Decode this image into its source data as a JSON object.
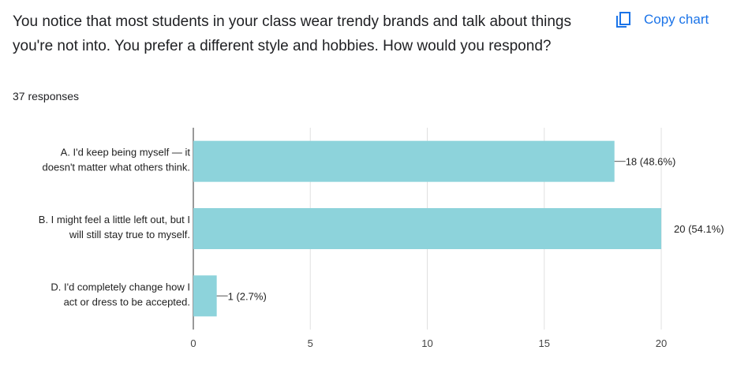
{
  "question": {
    "title": "You notice that most students in your class wear trendy brands and talk about things you're not into. You prefer a different style and hobbies. How would you respond?",
    "responses": "37 responses"
  },
  "copy_button": {
    "label": "Copy chart",
    "icon": "copy-icon"
  },
  "colors": {
    "bar": "#8dd3db",
    "accent": "#1a73e8",
    "grid": "#e0e0e0",
    "axis": "#333333"
  },
  "chart_data": {
    "type": "bar",
    "orientation": "horizontal",
    "categories": [
      [
        "A. I'd keep being myself — it",
        "doesn't matter what others think."
      ],
      [
        "B. I might feel a little left out, but I",
        "will still stay true to myself."
      ],
      [
        "D. I'd completely change how I",
        "act or dress to be accepted."
      ]
    ],
    "values": [
      18,
      20,
      1
    ],
    "data_labels": [
      "18 (48.6%)",
      "20 (54.1%)",
      "1 (2.7%)"
    ],
    "xlim": [
      0,
      20
    ],
    "xticks": [
      0,
      5,
      10,
      15,
      20
    ],
    "xtick_labels": [
      "0",
      "5",
      "10",
      "15",
      "20"
    ],
    "grid": true,
    "legend": "none"
  }
}
